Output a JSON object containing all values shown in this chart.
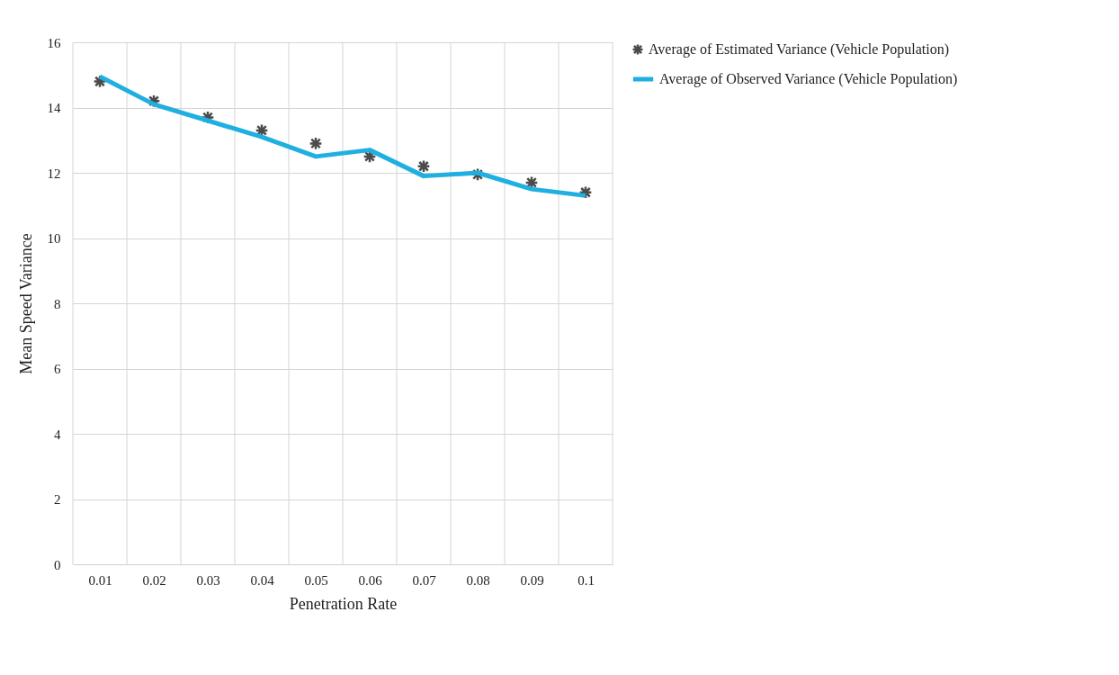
{
  "chart_data": {
    "type": "line",
    "xlabel": "Penetration Rate",
    "ylabel": "Mean Speed Variance",
    "categories": [
      "0.01",
      "0.02",
      "0.03",
      "0.04",
      "0.05",
      "0.06",
      "0.07",
      "0.08",
      "0.09",
      "0.1"
    ],
    "series": [
      {
        "name": "Average of Estimated Variance (Vehicle Population)",
        "type": "scatter",
        "marker": "cross",
        "color": "#000000",
        "values": [
          14.8,
          14.2,
          13.7,
          13.3,
          12.9,
          12.5,
          12.2,
          11.95,
          11.7,
          11.4
        ]
      },
      {
        "name": "Average of Observed Variance (Vehicle Population)",
        "color": "#1fb0e0",
        "values": [
          14.95,
          14.1,
          13.6,
          13.1,
          12.5,
          12.7,
          11.9,
          12.0,
          11.5,
          11.3
        ]
      }
    ],
    "ylim": [
      0,
      16
    ],
    "yticks": [
      0,
      2,
      4,
      6,
      8,
      10,
      12,
      14,
      16
    ],
    "grid": true,
    "legend": "right",
    "line_style": "solid"
  }
}
